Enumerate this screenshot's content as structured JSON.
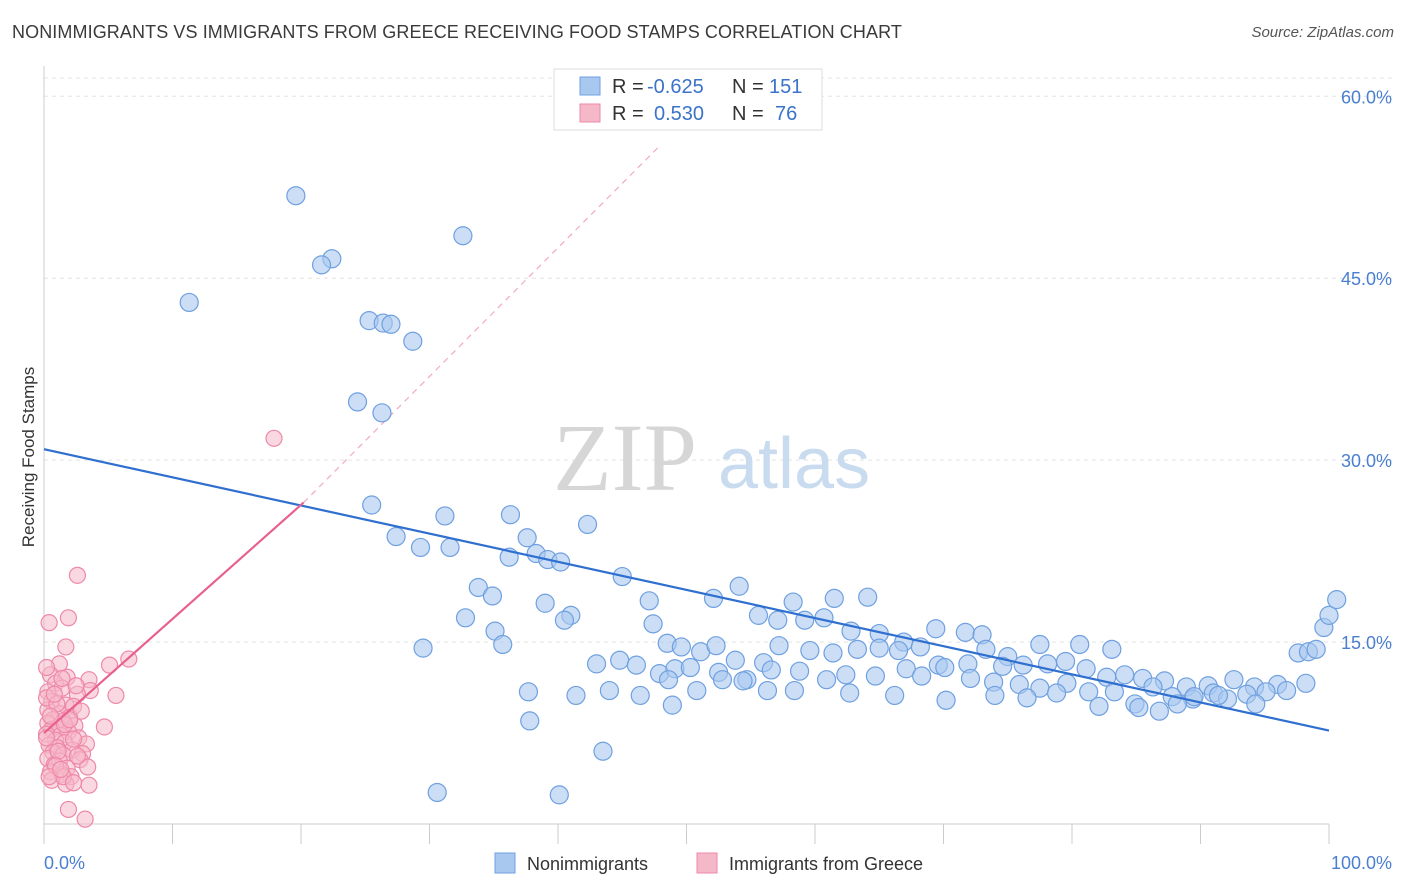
{
  "header": {
    "title": "NONIMMIGRANTS VS IMMIGRANTS FROM GREECE RECEIVING FOOD STAMPS CORRELATION CHART",
    "source": "Source: ZipAtlas.com"
  },
  "watermark": {
    "zip": "ZIP",
    "atlas": "atlas"
  },
  "legend_top": {
    "rows": [
      {
        "r_label": "R =",
        "r_value": "-0.625",
        "n_label": "N =",
        "n_value": "151",
        "color": "#a8c8f0"
      },
      {
        "r_label": "R =",
        "r_value": "0.530",
        "n_label": "N =",
        "n_value": "76",
        "color": "#f5b8c8"
      }
    ]
  },
  "legend_bottom": {
    "items": [
      {
        "label": "Nonimmigrants",
        "color": "#a8c8f0"
      },
      {
        "label": "Immigrants from Greece",
        "color": "#f5b8c8"
      }
    ]
  },
  "chart_data": {
    "type": "scatter",
    "title": "NONIMMIGRANTS VS IMMIGRANTS FROM GREECE RECEIVING FOOD STAMPS CORRELATION CHART",
    "xlabel": "",
    "ylabel": "Receiving Food Stamps",
    "xlim": [
      0,
      100
    ],
    "ylim": [
      0,
      62
    ],
    "x_tick_labels": [
      "0.0%",
      "100.0%"
    ],
    "y_ticks": [
      15,
      30,
      45,
      60
    ],
    "y_tick_labels": [
      "15.0%",
      "30.0%",
      "45.0%",
      "60.0%"
    ],
    "grid": true,
    "legend_position": "top-center",
    "series": [
      {
        "name": "Nonimmigrants",
        "color": "#6fa0e0",
        "fill": "#a8c8f0",
        "trend": {
          "x": [
            0,
            100
          ],
          "y": [
            30.9,
            7.7
          ]
        },
        "points": [
          [
            19.6,
            51.8
          ],
          [
            32.6,
            48.5
          ],
          [
            22.4,
            46.6
          ],
          [
            21.6,
            46.1
          ],
          [
            11.3,
            43.0
          ],
          [
            25.3,
            41.5
          ],
          [
            26.4,
            41.3
          ],
          [
            27.0,
            41.2
          ],
          [
            28.7,
            39.8
          ],
          [
            24.4,
            34.8
          ],
          [
            26.3,
            33.9
          ],
          [
            25.5,
            26.3
          ],
          [
            31.2,
            25.4
          ],
          [
            36.3,
            25.5
          ],
          [
            42.3,
            24.7
          ],
          [
            27.4,
            23.7
          ],
          [
            29.3,
            22.8
          ],
          [
            31.6,
            22.8
          ],
          [
            36.2,
            22.0
          ],
          [
            37.6,
            23.6
          ],
          [
            38.3,
            22.3
          ],
          [
            39.2,
            21.8
          ],
          [
            40.2,
            21.6
          ],
          [
            45.0,
            20.4
          ],
          [
            33.8,
            19.5
          ],
          [
            34.9,
            18.8
          ],
          [
            39.0,
            18.2
          ],
          [
            41.0,
            17.2
          ],
          [
            40.5,
            16.8
          ],
          [
            47.1,
            18.4
          ],
          [
            52.1,
            18.6
          ],
          [
            54.1,
            19.6
          ],
          [
            58.3,
            18.3
          ],
          [
            61.5,
            18.6
          ],
          [
            64.1,
            18.7
          ],
          [
            55.6,
            17.2
          ],
          [
            57.1,
            16.8
          ],
          [
            59.2,
            16.8
          ],
          [
            60.7,
            17.0
          ],
          [
            62.8,
            15.9
          ],
          [
            65.0,
            15.7
          ],
          [
            66.9,
            15.0
          ],
          [
            69.4,
            16.1
          ],
          [
            71.7,
            15.8
          ],
          [
            73.0,
            15.6
          ],
          [
            73.3,
            14.4
          ],
          [
            75.0,
            13.8
          ],
          [
            77.5,
            14.8
          ],
          [
            80.6,
            14.8
          ],
          [
            83.1,
            14.4
          ],
          [
            32.8,
            17.0
          ],
          [
            35.1,
            15.9
          ],
          [
            35.7,
            14.8
          ],
          [
            29.5,
            14.5
          ],
          [
            47.4,
            16.5
          ],
          [
            48.5,
            14.9
          ],
          [
            49.6,
            14.6
          ],
          [
            51.1,
            14.2
          ],
          [
            52.3,
            14.7
          ],
          [
            53.8,
            13.5
          ],
          [
            56.0,
            13.3
          ],
          [
            57.2,
            14.7
          ],
          [
            59.6,
            14.3
          ],
          [
            61.4,
            14.1
          ],
          [
            63.3,
            14.4
          ],
          [
            65.0,
            14.5
          ],
          [
            66.5,
            14.3
          ],
          [
            68.2,
            14.6
          ],
          [
            69.6,
            13.1
          ],
          [
            71.9,
            13.2
          ],
          [
            74.6,
            13.0
          ],
          [
            76.2,
            13.1
          ],
          [
            78.1,
            13.2
          ],
          [
            79.5,
            13.4
          ],
          [
            81.1,
            12.8
          ],
          [
            82.7,
            12.1
          ],
          [
            84.1,
            12.3
          ],
          [
            85.5,
            12.0
          ],
          [
            87.2,
            11.8
          ],
          [
            88.9,
            11.3
          ],
          [
            90.6,
            11.4
          ],
          [
            92.6,
            11.9
          ],
          [
            94.2,
            11.3
          ],
          [
            96.0,
            11.5
          ],
          [
            97.6,
            14.1
          ],
          [
            98.4,
            14.2
          ],
          [
            99.0,
            14.4
          ],
          [
            99.6,
            16.2
          ],
          [
            100.0,
            17.2
          ],
          [
            100.6,
            18.5
          ],
          [
            43.0,
            13.2
          ],
          [
            44.8,
            13.5
          ],
          [
            46.1,
            13.1
          ],
          [
            47.9,
            12.4
          ],
          [
            49.1,
            12.8
          ],
          [
            50.3,
            12.9
          ],
          [
            52.5,
            12.5
          ],
          [
            54.7,
            11.9
          ],
          [
            56.6,
            12.7
          ],
          [
            58.8,
            12.6
          ],
          [
            60.9,
            11.9
          ],
          [
            62.4,
            12.3
          ],
          [
            64.7,
            12.2
          ],
          [
            67.1,
            12.8
          ],
          [
            68.3,
            12.2
          ],
          [
            70.1,
            12.9
          ],
          [
            72.1,
            12.0
          ],
          [
            73.9,
            11.7
          ],
          [
            75.9,
            11.5
          ],
          [
            77.5,
            11.2
          ],
          [
            79.6,
            11.6
          ],
          [
            81.3,
            10.9
          ],
          [
            83.3,
            10.9
          ],
          [
            84.9,
            9.9
          ],
          [
            86.3,
            11.3
          ],
          [
            87.8,
            10.5
          ],
          [
            89.4,
            10.3
          ],
          [
            91.0,
            10.8
          ],
          [
            92.1,
            10.3
          ],
          [
            93.6,
            10.7
          ],
          [
            95.1,
            10.9
          ],
          [
            96.7,
            11.0
          ],
          [
            98.2,
            11.6
          ],
          [
            44.0,
            11.0
          ],
          [
            46.4,
            10.6
          ],
          [
            48.6,
            11.9
          ],
          [
            50.8,
            11.0
          ],
          [
            52.8,
            11.9
          ],
          [
            54.4,
            11.8
          ],
          [
            56.3,
            11.0
          ],
          [
            58.4,
            11.0
          ],
          [
            62.7,
            10.8
          ],
          [
            66.2,
            10.6
          ],
          [
            70.2,
            10.2
          ],
          [
            74.0,
            10.6
          ],
          [
            76.5,
            10.4
          ],
          [
            78.8,
            10.8
          ],
          [
            82.1,
            9.7
          ],
          [
            85.2,
            9.6
          ],
          [
            88.2,
            9.9
          ],
          [
            91.4,
            10.6
          ],
          [
            94.3,
            9.9
          ],
          [
            37.7,
            10.9
          ],
          [
            41.4,
            10.6
          ],
          [
            43.5,
            6.0
          ],
          [
            37.8,
            8.5
          ],
          [
            30.6,
            2.6
          ],
          [
            40.1,
            2.4
          ],
          [
            86.8,
            9.3
          ],
          [
            89.5,
            10.5
          ],
          [
            48.9,
            9.8
          ]
        ]
      },
      {
        "name": "Immigrants from Greece",
        "color": "#ee88a8",
        "fill": "#f5b8c8",
        "trend": {
          "x": [
            0,
            20.2
          ],
          "y": [
            7.5,
            26.5
          ]
        },
        "trend_extension": {
          "x": [
            20.2,
            48.0
          ],
          "y": [
            26.5,
            56.0
          ]
        },
        "points": [
          [
            17.9,
            31.8
          ],
          [
            2.6,
            20.5
          ],
          [
            1.9,
            17.0
          ],
          [
            0.4,
            16.6
          ],
          [
            1.7,
            14.6
          ],
          [
            6.6,
            13.6
          ],
          [
            5.1,
            13.1
          ],
          [
            1.2,
            13.2
          ],
          [
            0.5,
            12.3
          ],
          [
            1.8,
            12.1
          ],
          [
            3.5,
            11.9
          ],
          [
            0.9,
            11.6
          ],
          [
            1.4,
            11.2
          ],
          [
            3.6,
            11.0
          ],
          [
            0.3,
            10.9
          ],
          [
            2.6,
            10.7
          ],
          [
            5.6,
            10.6
          ],
          [
            0.6,
            10.1
          ],
          [
            1.7,
            9.8
          ],
          [
            2.3,
            9.7
          ],
          [
            0.3,
            9.4
          ],
          [
            1.2,
            9.1
          ],
          [
            2.0,
            8.8
          ],
          [
            0.7,
            8.6
          ],
          [
            1.5,
            8.5
          ],
          [
            0.3,
            8.3
          ],
          [
            1.1,
            8.0
          ],
          [
            2.4,
            8.1
          ],
          [
            0.6,
            7.8
          ],
          [
            1.9,
            7.6
          ],
          [
            0.2,
            7.4
          ],
          [
            1.3,
            7.3
          ],
          [
            2.7,
            7.1
          ],
          [
            0.9,
            6.9
          ],
          [
            1.6,
            6.7
          ],
          [
            3.3,
            6.6
          ],
          [
            0.4,
            6.5
          ],
          [
            1.0,
            6.3
          ],
          [
            2.2,
            6.1
          ],
          [
            4.7,
            8.0
          ],
          [
            0.7,
            5.9
          ],
          [
            1.5,
            5.7
          ],
          [
            3.0,
            5.8
          ],
          [
            0.3,
            5.4
          ],
          [
            1.2,
            5.2
          ],
          [
            2.8,
            5.3
          ],
          [
            0.8,
            4.9
          ],
          [
            1.8,
            4.6
          ],
          [
            3.4,
            4.7
          ],
          [
            0.5,
            4.3
          ],
          [
            1.4,
            4.1
          ],
          [
            2.1,
            3.9
          ],
          [
            0.6,
            3.6
          ],
          [
            1.7,
            3.3
          ],
          [
            3.5,
            3.2
          ],
          [
            1.9,
            1.2
          ],
          [
            3.2,
            0.4
          ],
          [
            0.2,
            12.9
          ],
          [
            0.2,
            10.4
          ],
          [
            1.0,
            9.9
          ],
          [
            2.9,
            9.3
          ],
          [
            0.5,
            8.9
          ],
          [
            1.6,
            8.2
          ],
          [
            2.3,
            7.0
          ],
          [
            0.2,
            7.1
          ],
          [
            1.1,
            6.0
          ],
          [
            2.6,
            5.6
          ],
          [
            0.9,
            4.8
          ],
          [
            1.5,
            3.9
          ],
          [
            2.3,
            3.4
          ],
          [
            0.4,
            3.9
          ],
          [
            1.3,
            4.5
          ],
          [
            2.0,
            8.6
          ],
          [
            0.8,
            10.7
          ],
          [
            1.4,
            12.0
          ],
          [
            2.5,
            11.4
          ]
        ]
      }
    ]
  }
}
